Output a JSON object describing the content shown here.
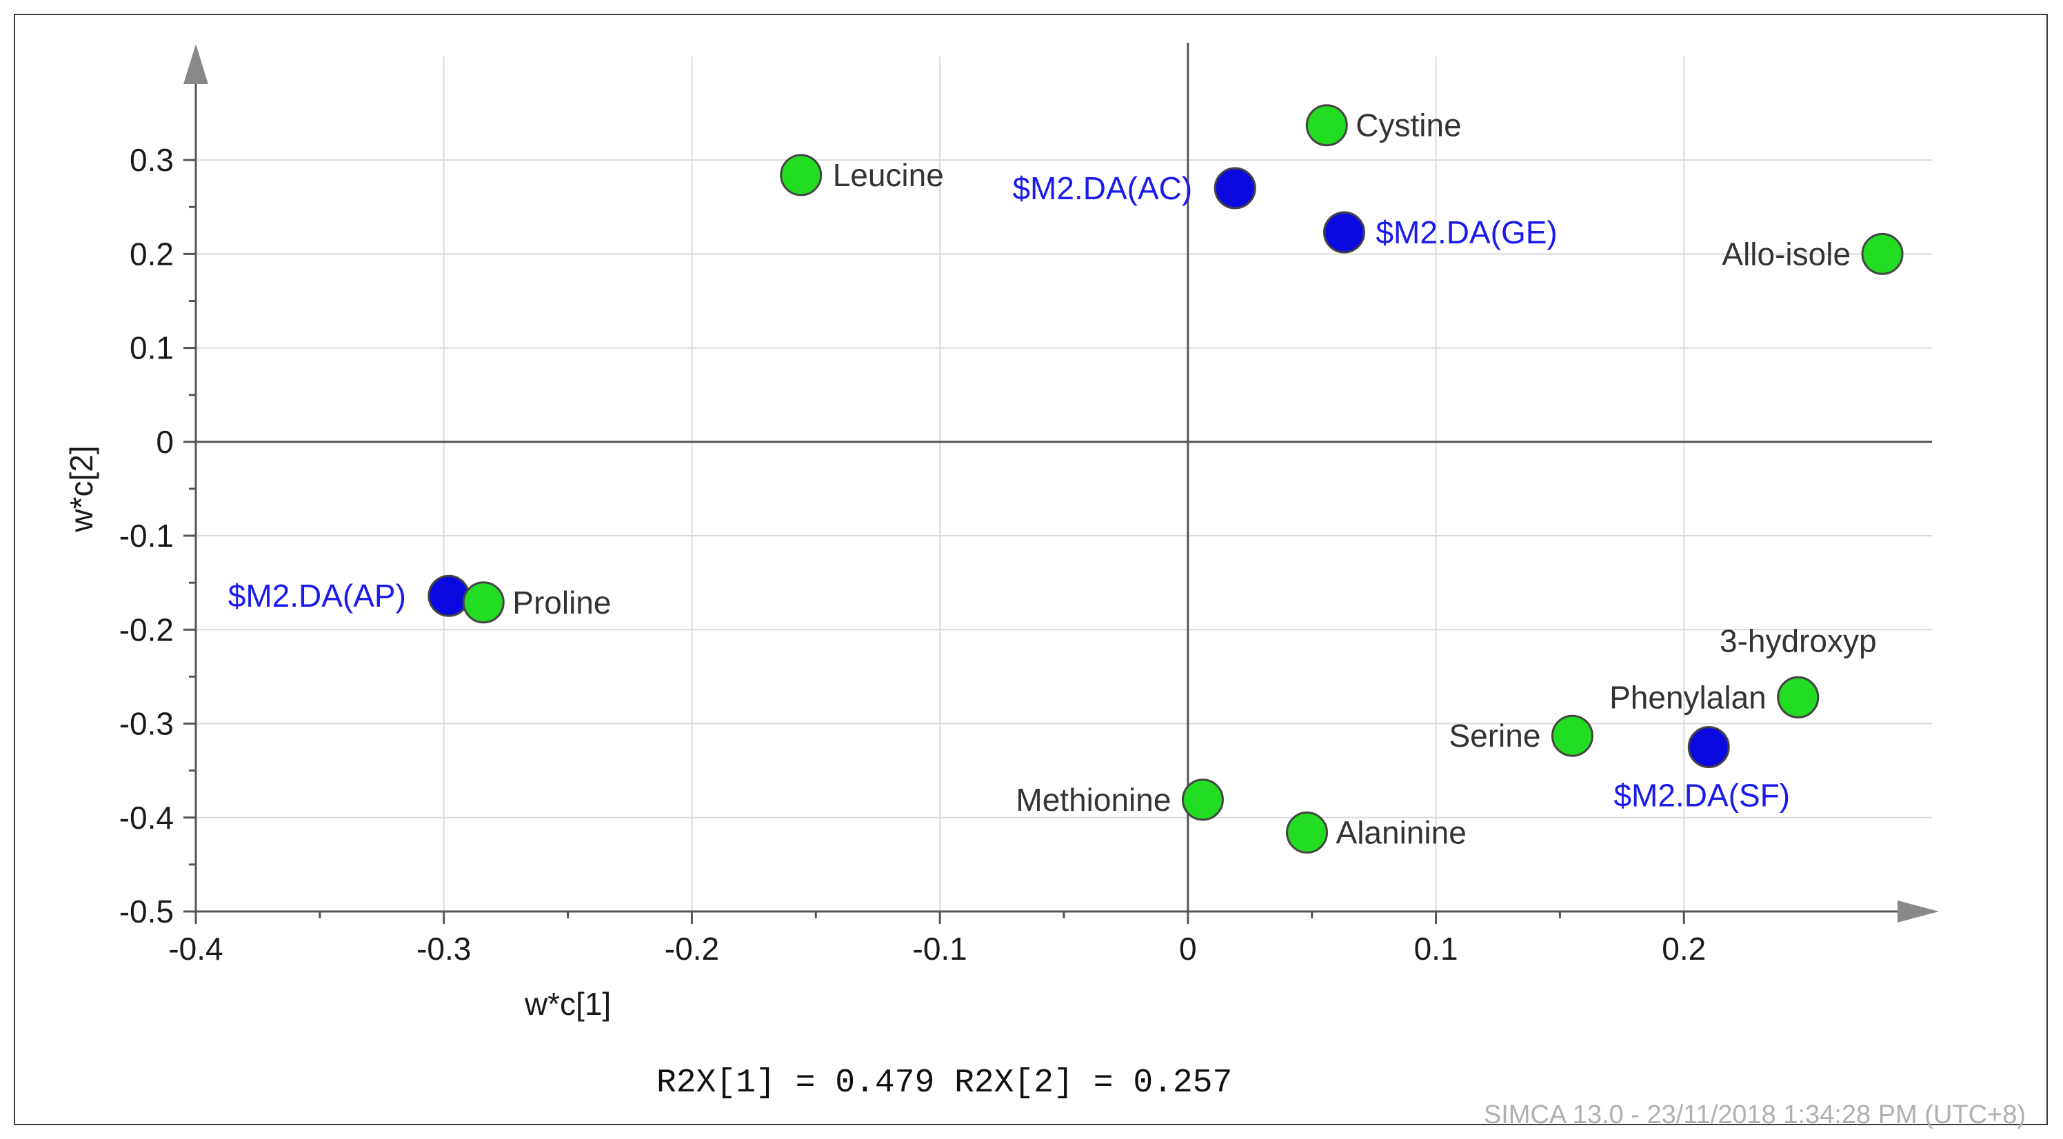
{
  "chart_data": {
    "type": "scatter",
    "xlabel": "w*c[1]",
    "ylabel": "w*c[2]",
    "xlim": [
      -0.4,
      0.3
    ],
    "ylim": [
      -0.5,
      0.35
    ],
    "x_ticks": [
      -0.4,
      -0.3,
      -0.2,
      -0.1,
      0,
      0.1,
      0.2
    ],
    "x_tick_labels": [
      "-0.4",
      "-0.3",
      "-0.2",
      "-0.1",
      "0",
      "0.1",
      "0.2"
    ],
    "y_ticks": [
      0.3,
      0.2,
      0.1,
      0,
      -0.1,
      -0.2,
      -0.3,
      -0.4,
      -0.5
    ],
    "y_tick_labels": [
      "0.3",
      "0.2",
      "0.1",
      "0",
      "-0.1",
      "-0.2",
      "-0.3",
      "-0.4",
      "-0.5"
    ],
    "grid": true,
    "series": [
      {
        "color": "#22dd22",
        "points": [
          {
            "label": "Cystine",
            "x": 0.056,
            "y": 0.337
          },
          {
            "label": "Leucine",
            "x": -0.156,
            "y": 0.284
          },
          {
            "label": "Allo-isole",
            "x": 0.28,
            "y": 0.2
          },
          {
            "label": "Proline",
            "x": -0.284,
            "y": -0.171
          },
          {
            "label": "3-hydroxyp",
            "x": 0.246,
            "y": -0.272
          },
          {
            "label": "Phenylalan",
            "x": 0.246,
            "y": -0.272
          },
          {
            "label": "Serine",
            "x": 0.155,
            "y": -0.313
          },
          {
            "label": "Methionine",
            "x": 0.006,
            "y": -0.381
          },
          {
            "label": "Alaninine",
            "x": 0.048,
            "y": -0.416
          }
        ]
      },
      {
        "color": "#0a0ae0",
        "points": [
          {
            "label": "$M2.DA(AC)",
            "x": 0.019,
            "y": 0.27
          },
          {
            "label": "$M2.DA(GE)",
            "x": 0.063,
            "y": 0.223
          },
          {
            "label": "$M2.DA(AP)",
            "x": -0.298,
            "y": -0.164
          },
          {
            "label": "$M2.DA(SF)",
            "x": 0.21,
            "y": -0.325
          }
        ]
      }
    ],
    "label_colors": {
      "green_series": "#333333",
      "blue_series": "#1a1aee"
    }
  },
  "r2x_text": "R2X[1] = 0.479 R2X[2] = 0.257",
  "footer_text": "SIMCA 13.0 - 23/11/2018 1:34:28 PM (UTC+8)"
}
